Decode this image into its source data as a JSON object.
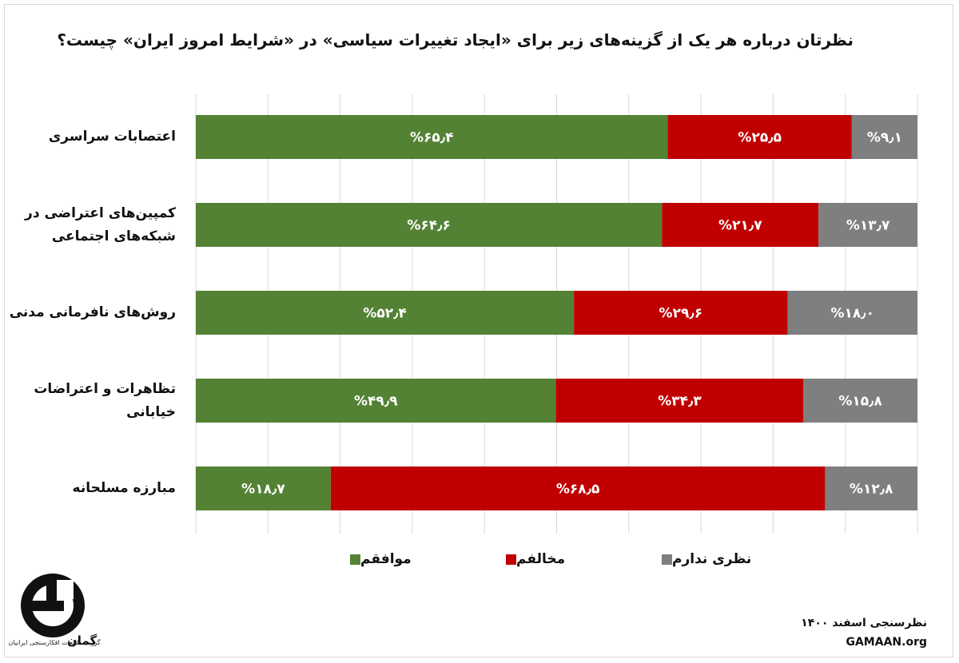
{
  "title": "نظرتان درباره هر یک از گزینه‌های زیر برای «ایجاد تغییرات سیاسی» در «شرایط امروز ایران» چیست؟",
  "legend": {
    "agree": "موافقم",
    "disagree": "مخالفم",
    "no_opinion": "نظری ندارم"
  },
  "colors": {
    "agree": "#548235",
    "disagree": "#c00000",
    "no_opinion": "#7f7f7f"
  },
  "source": {
    "line1": "نظرسنجی اسفند ۱۴۰۰",
    "line2": "GAMAAN.org"
  },
  "logo": {
    "text": "گمان",
    "caption": "گروه مطالعات افکارسنجی ایرانیان"
  },
  "chart_data": {
    "type": "bar",
    "orientation": "horizontal",
    "stacked": "100%",
    "categories": [
      "اعتصابات سراسری",
      "کمپین‌های اعتراضی در شبکه‌های اجتماعی",
      "روش‌های نافرمانی مدنی",
      "تظاهرات و اعتراضات خیابانی",
      "مبارزه مسلحانه"
    ],
    "category_lines": [
      [
        "اعتصابات سراسری"
      ],
      [
        "کمپین‌های اعتراضی در",
        "شبکه‌های اجتماعی"
      ],
      [
        "روش‌های نافرمانی مدنی"
      ],
      [
        "تظاهرات و اعتراضات",
        "خیابانی"
      ],
      [
        "مبارزه مسلحانه"
      ]
    ],
    "series": [
      {
        "name": "موافقم",
        "values": [
          65.4,
          64.6,
          52.4,
          49.9,
          18.7
        ],
        "labels": [
          "%۶۵٫۴",
          "%۶۴٫۶",
          "%۵۲٫۴",
          "%۴۹٫۹",
          "%۱۸٫۷"
        ]
      },
      {
        "name": "مخالفم",
        "values": [
          25.5,
          21.7,
          29.6,
          34.3,
          68.5
        ],
        "labels": [
          "%۲۵٫۵",
          "%۲۱٫۷",
          "%۲۹٫۶",
          "%۳۴٫۳",
          "%۶۸٫۵"
        ]
      },
      {
        "name": "نظری ندارم",
        "values": [
          9.1,
          13.7,
          18.0,
          15.8,
          12.8
        ],
        "labels": [
          "%۹٫۱",
          "%۱۳٫۷",
          "%۱۸٫۰",
          "%۱۵٫۸",
          "%۱۲٫۸"
        ]
      }
    ],
    "xlim": [
      0,
      100
    ],
    "grid": true,
    "legend_position": "bottom"
  }
}
